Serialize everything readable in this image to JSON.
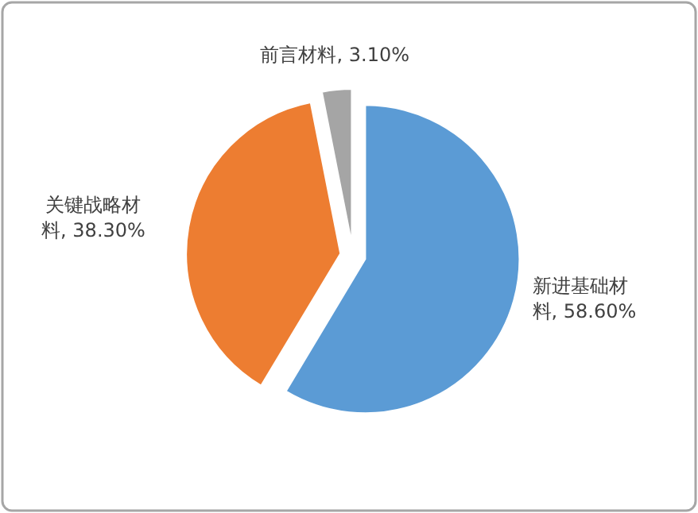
{
  "chart_data": {
    "type": "pie",
    "categories": [
      "新进基础材料",
      "关键战略材料",
      "前言材料"
    ],
    "values": [
      58.6,
      38.3,
      3.1
    ],
    "colors": [
      "#5b9bd5",
      "#ed7d31",
      "#a5a5a5"
    ],
    "value_labels": [
      "58.60%",
      "38.30%",
      "3.10%"
    ]
  }
}
